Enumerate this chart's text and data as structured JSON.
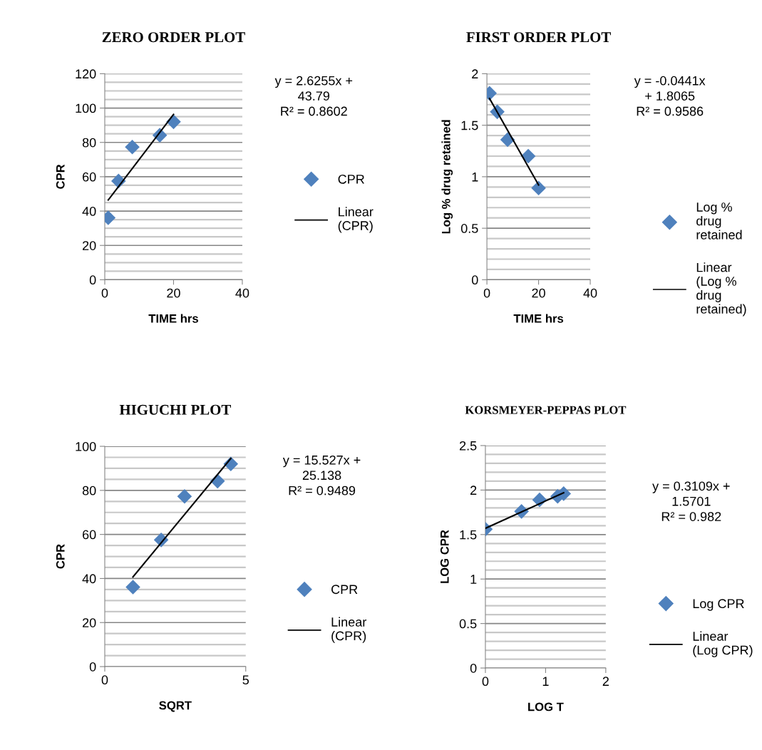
{
  "chart_data": [
    {
      "type": "scatter",
      "title": "ZERO ORDER PLOT",
      "xlabel": "TIME hrs",
      "ylabel": "CPR",
      "xlim": [
        0,
        40
      ],
      "xticks": [
        0,
        20,
        40
      ],
      "ylim": [
        0,
        120
      ],
      "yticks": [
        0,
        20,
        40,
        60,
        80,
        100,
        120,
        {
          "value": 5,
          "label": null
        },
        {
          "value": 10,
          "label": null
        },
        {
          "value": 15,
          "label": null
        },
        {
          "value": 25,
          "label": null
        },
        {
          "value": 30,
          "label": null
        },
        {
          "value": 35,
          "label": null
        },
        {
          "value": 45,
          "label": null
        },
        {
          "value": 50,
          "label": null
        },
        {
          "value": 55,
          "label": null
        },
        {
          "value": 65,
          "label": null
        },
        {
          "value": 70,
          "label": null
        },
        {
          "value": 75,
          "label": null
        },
        {
          "value": 85,
          "label": null
        },
        {
          "value": 90,
          "label": null
        },
        {
          "value": 95,
          "label": null
        },
        {
          "value": 105,
          "label": null
        },
        {
          "value": 110,
          "label": null
        },
        {
          "value": 115,
          "label": null
        }
      ],
      "grid": "y",
      "legend": "right",
      "annotations": [
        "y = 2.6255x +\n43.79\nR² = 0.8602"
      ],
      "series": [
        {
          "name": "CPR",
          "marker": "diamond",
          "color": "#4f81bd",
          "x": [
            1,
            4,
            8,
            16,
            20
          ],
          "values": [
            36.1,
            57.5,
            77.3,
            84.2,
            92.0
          ]
        },
        {
          "name": "Linear\n(CPR)",
          "type": "line",
          "marker": "none",
          "color": "#000000",
          "line_style": "solid",
          "x": [
            1,
            20
          ],
          "values": [
            46.4,
            96.3
          ]
        }
      ]
    },
    {
      "type": "scatter",
      "title": "FIRST ORDER PLOT",
      "xlabel": "TIME hrs",
      "ylabel": "Log % drug retained",
      "xlim": [
        0,
        40
      ],
      "xticks": [
        0,
        20,
        40
      ],
      "ylim": [
        0,
        2
      ],
      "yticks": [
        0,
        0.5,
        1,
        1.5,
        2,
        {
          "value": 0.1,
          "label": null
        },
        {
          "value": 0.2,
          "label": null
        },
        {
          "value": 0.3,
          "label": null
        },
        {
          "value": 0.4,
          "label": null
        },
        {
          "value": 0.6,
          "label": null
        },
        {
          "value": 0.7,
          "label": null
        },
        {
          "value": 0.8,
          "label": null
        },
        {
          "value": 0.9,
          "label": null
        },
        {
          "value": 1.1,
          "label": null
        },
        {
          "value": 1.2,
          "label": null
        },
        {
          "value": 1.3,
          "label": null
        },
        {
          "value": 1.4,
          "label": null
        },
        {
          "value": 1.6,
          "label": null
        },
        {
          "value": 1.7,
          "label": null
        },
        {
          "value": 1.8,
          "label": null
        },
        {
          "value": 1.9,
          "label": null
        }
      ],
      "grid": "y",
      "legend": "right",
      "annotations": [
        "y = -0.0441x\n+ 1.8065\nR² = 0.9586"
      ],
      "series": [
        {
          "name": "Log %\ndrug\nretained",
          "marker": "diamond",
          "color": "#4f81bd",
          "x": [
            1,
            4,
            8,
            16,
            20
          ],
          "values": [
            1.81,
            1.63,
            1.36,
            1.2,
            0.89
          ]
        },
        {
          "name": "Linear\n(Log %\ndrug\nretained)",
          "type": "line",
          "marker": "none",
          "color": "#000000",
          "line_style": "solid",
          "x": [
            1,
            20
          ],
          "values": [
            1.76,
            0.92
          ]
        }
      ]
    },
    {
      "type": "scatter",
      "title": "HIGUCHI PLOT",
      "xlabel": "SQRT",
      "ylabel": "CPR",
      "xlim": [
        0,
        5
      ],
      "xticks": [
        0,
        5
      ],
      "ylim": [
        0,
        100
      ],
      "yticks": [
        0,
        20,
        40,
        60,
        80,
        100,
        {
          "value": 5,
          "label": null
        },
        {
          "value": 10,
          "label": null
        },
        {
          "value": 15,
          "label": null
        },
        {
          "value": 25,
          "label": null
        },
        {
          "value": 30,
          "label": null
        },
        {
          "value": 35,
          "label": null
        },
        {
          "value": 45,
          "label": null
        },
        {
          "value": 50,
          "label": null
        },
        {
          "value": 55,
          "label": null
        },
        {
          "value": 65,
          "label": null
        },
        {
          "value": 70,
          "label": null
        },
        {
          "value": 75,
          "label": null
        },
        {
          "value": 85,
          "label": null
        },
        {
          "value": 90,
          "label": null
        },
        {
          "value": 95,
          "label": null
        }
      ],
      "grid": "y",
      "legend": "right",
      "annotations": [
        "y = 15.527x +\n25.138\nR² = 0.9489"
      ],
      "series": [
        {
          "name": "CPR",
          "marker": "diamond",
          "color": "#4f81bd",
          "x": [
            1,
            2,
            2.83,
            4,
            4.47
          ],
          "values": [
            36.1,
            57.5,
            77.3,
            84.2,
            92.0
          ]
        },
        {
          "name": "Linear\n(CPR)",
          "type": "line",
          "marker": "none",
          "color": "#000000",
          "line_style": "solid",
          "x": [
            1,
            4.47
          ],
          "values": [
            40.7,
            94.5
          ]
        }
      ]
    },
    {
      "type": "scatter",
      "title": "KORSMEYER-PEPPAS PLOT",
      "xlabel": "LOG T",
      "ylabel": "LOG CPR",
      "xlim": [
        0,
        2
      ],
      "xticks": [
        0,
        1,
        2
      ],
      "ylim": [
        0,
        2.5
      ],
      "yticks": [
        0,
        0.5,
        1,
        1.5,
        2,
        2.5,
        {
          "value": 0.1,
          "label": null
        },
        {
          "value": 0.2,
          "label": null
        },
        {
          "value": 0.3,
          "label": null
        },
        {
          "value": 0.4,
          "label": null
        },
        {
          "value": 0.6,
          "label": null
        },
        {
          "value": 0.7,
          "label": null
        },
        {
          "value": 0.8,
          "label": null
        },
        {
          "value": 0.9,
          "label": null
        },
        {
          "value": 1.1,
          "label": null
        },
        {
          "value": 1.2,
          "label": null
        },
        {
          "value": 1.3,
          "label": null
        },
        {
          "value": 1.4,
          "label": null
        },
        {
          "value": 1.6,
          "label": null
        },
        {
          "value": 1.7,
          "label": null
        },
        {
          "value": 1.8,
          "label": null
        },
        {
          "value": 1.9,
          "label": null
        },
        {
          "value": 2.1,
          "label": null
        },
        {
          "value": 2.2,
          "label": null
        },
        {
          "value": 2.3,
          "label": null
        },
        {
          "value": 2.4,
          "label": null
        }
      ],
      "grid": "y",
      "legend": "right",
      "annotations": [
        "y = 0.3109x +\n1.5701\nR² = 0.982"
      ],
      "series": [
        {
          "name": "Log CPR",
          "marker": "diamond",
          "color": "#4f81bd",
          "x": [
            0,
            0.6,
            0.9,
            1.2,
            1.3
          ],
          "values": [
            1.56,
            1.76,
            1.89,
            1.93,
            1.96
          ]
        },
        {
          "name": "Linear\n(Log CPR)",
          "type": "line",
          "marker": "none",
          "color": "#000000",
          "line_style": "solid",
          "x": [
            0,
            1.3
          ],
          "values": [
            1.57,
            1.97
          ]
        }
      ]
    }
  ]
}
